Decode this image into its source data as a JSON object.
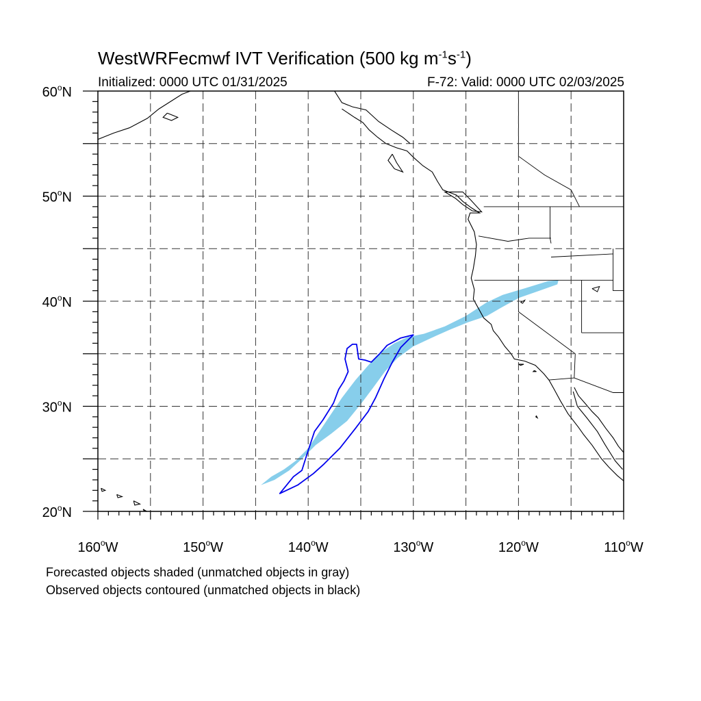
{
  "header": {
    "title_main": "WestWRFecmwf IVT Verification (500 kg m",
    "title_exp1": "-1",
    "title_mid": "s",
    "title_exp2": "-1",
    "title_end": ")",
    "initialized": "Initialized: 0000 UTC 01/31/2025",
    "valid": "F-72: Valid: 0000 UTC 02/03/2025"
  },
  "map": {
    "lon_range": [
      -160,
      -110
    ],
    "lat_range": [
      20,
      60
    ],
    "lon_ticks": [
      {
        "value": -160,
        "num": "160",
        "hem": "W"
      },
      {
        "value": -150,
        "num": "150",
        "hem": "W"
      },
      {
        "value": -140,
        "num": "140",
        "hem": "W"
      },
      {
        "value": -130,
        "num": "130",
        "hem": "W"
      },
      {
        "value": -120,
        "num": "120",
        "hem": "W"
      },
      {
        "value": -110,
        "num": "110",
        "hem": "W"
      }
    ],
    "lat_ticks": [
      {
        "value": 20,
        "num": "20",
        "hem": "N"
      },
      {
        "value": 30,
        "num": "30",
        "hem": "N"
      },
      {
        "value": 40,
        "num": "40",
        "hem": "N"
      },
      {
        "value": 50,
        "num": "50",
        "hem": "N"
      },
      {
        "value": 60,
        "num": "60",
        "hem": "N"
      }
    ],
    "gridlines": "dashed every 5 degrees",
    "colors": {
      "forecast_fill": "#87ceeb",
      "observed_contour": "#0000ee",
      "coastline": "#000000"
    },
    "forecast_object": [
      [
        -144.5,
        22.5
      ],
      [
        -143.5,
        23.3
      ],
      [
        -142.3,
        24.0
      ],
      [
        -141.2,
        24.8
      ],
      [
        -140.0,
        26.0
      ],
      [
        -138.8,
        27.8
      ],
      [
        -137.8,
        29.3
      ],
      [
        -136.8,
        30.8
      ],
      [
        -135.5,
        32.5
      ],
      [
        -134.2,
        34.0
      ],
      [
        -133.0,
        35.2
      ],
      [
        -131.8,
        36.0
      ],
      [
        -130.5,
        36.6
      ],
      [
        -129.0,
        36.9
      ],
      [
        -127.0,
        37.6
      ],
      [
        -125.0,
        38.6
      ],
      [
        -123.0,
        39.9
      ],
      [
        -121.5,
        40.6
      ],
      [
        -119.5,
        41.2
      ],
      [
        -117.2,
        41.9
      ],
      [
        -116.2,
        42.0
      ],
      [
        -116.3,
        41.6
      ],
      [
        -118.0,
        41.0
      ],
      [
        -120.0,
        40.3
      ],
      [
        -121.8,
        39.3
      ],
      [
        -123.0,
        38.6
      ],
      [
        -124.8,
        38.0
      ],
      [
        -126.5,
        37.3
      ],
      [
        -128.3,
        36.5
      ],
      [
        -130.0,
        35.7
      ],
      [
        -131.5,
        34.6
      ],
      [
        -132.7,
        33.3
      ],
      [
        -133.8,
        31.8
      ],
      [
        -135.0,
        30.2
      ],
      [
        -136.3,
        28.6
      ],
      [
        -137.8,
        27.4
      ],
      [
        -139.3,
        26.3
      ],
      [
        -140.6,
        25.0
      ],
      [
        -141.8,
        23.9
      ],
      [
        -143.2,
        23.0
      ],
      [
        -144.5,
        22.5
      ]
    ],
    "observed_object": [
      [
        -142.7,
        21.7
      ],
      [
        -141.0,
        22.5
      ],
      [
        -139.5,
        23.6
      ],
      [
        -138.5,
        24.5
      ],
      [
        -137.0,
        26.0
      ],
      [
        -135.5,
        27.9
      ],
      [
        -134.3,
        29.5
      ],
      [
        -133.6,
        30.8
      ],
      [
        -132.8,
        32.6
      ],
      [
        -132.0,
        34.2
      ],
      [
        -131.2,
        35.6
      ],
      [
        -130.0,
        36.8
      ],
      [
        -131.2,
        36.5
      ],
      [
        -132.5,
        35.8
      ],
      [
        -133.2,
        35.0
      ],
      [
        -134.0,
        34.2
      ],
      [
        -134.6,
        34.4
      ],
      [
        -135.2,
        34.5
      ],
      [
        -135.3,
        35.2
      ],
      [
        -135.4,
        35.9
      ],
      [
        -135.8,
        35.9
      ],
      [
        -136.3,
        35.5
      ],
      [
        -136.5,
        34.5
      ],
      [
        -136.2,
        33.3
      ],
      [
        -136.6,
        32.4
      ],
      [
        -137.1,
        31.6
      ],
      [
        -137.6,
        30.3
      ],
      [
        -138.6,
        28.7
      ],
      [
        -139.4,
        27.6
      ],
      [
        -140.1,
        25.5
      ],
      [
        -140.6,
        23.9
      ],
      [
        -141.4,
        23.3
      ],
      [
        -142.7,
        21.7
      ]
    ],
    "coastline": [
      [
        -136.8,
        58.3
      ],
      [
        -135.6,
        57.5
      ],
      [
        -134.8,
        57.0
      ],
      [
        -134.2,
        56.3
      ],
      [
        -133.4,
        55.6
      ],
      [
        -132.6,
        55.0
      ],
      [
        -131.6,
        54.6
      ],
      [
        -130.6,
        54.3
      ],
      [
        -130.0,
        53.7
      ],
      [
        -129.1,
        52.9
      ],
      [
        -128.2,
        52.3
      ],
      [
        -127.7,
        51.4
      ],
      [
        -127.2,
        50.6
      ],
      [
        -125.9,
        50.1
      ],
      [
        -125.3,
        49.5
      ],
      [
        -124.5,
        48.9
      ],
      [
        -123.7,
        48.4
      ],
      [
        -124.6,
        48.4
      ],
      [
        -124.8,
        47.8
      ],
      [
        -124.2,
        46.6
      ],
      [
        -124.0,
        45.4
      ],
      [
        -124.1,
        44.3
      ],
      [
        -124.3,
        43.1
      ],
      [
        -124.5,
        42.2
      ],
      [
        -124.2,
        41.1
      ],
      [
        -124.3,
        40.2
      ],
      [
        -123.8,
        39.3
      ],
      [
        -123.3,
        38.4
      ],
      [
        -122.6,
        37.8
      ],
      [
        -122.4,
        37.2
      ],
      [
        -121.9,
        36.6
      ],
      [
        -121.3,
        35.7
      ],
      [
        -120.7,
        35.0
      ],
      [
        -120.4,
        34.5
      ],
      [
        -119.4,
        34.3
      ],
      [
        -118.4,
        33.9
      ],
      [
        -117.6,
        33.1
      ],
      [
        -117.1,
        32.5
      ],
      [
        -116.6,
        31.6
      ],
      [
        -116.0,
        30.5
      ],
      [
        -115.3,
        29.3
      ],
      [
        -114.3,
        28.0
      ],
      [
        -113.8,
        27.3
      ],
      [
        -113.0,
        26.3
      ],
      [
        -112.1,
        25.0
      ],
      [
        -111.4,
        24.2
      ],
      [
        -110.6,
        23.4
      ],
      [
        -110.0,
        22.9
      ]
    ],
    "gulf_coast": [
      [
        -114.7,
        31.8
      ],
      [
        -114.3,
        31.0
      ],
      [
        -113.6,
        30.2
      ],
      [
        -113.0,
        29.5
      ],
      [
        -112.4,
        28.9
      ],
      [
        -111.7,
        27.9
      ],
      [
        -111.0,
        27.0
      ],
      [
        -110.5,
        26.2
      ],
      [
        -110.0,
        25.6
      ]
    ],
    "baja_east": [
      [
        -114.8,
        31.4
      ],
      [
        -114.4,
        30.0
      ],
      [
        -113.5,
        28.9
      ],
      [
        -112.5,
        27.6
      ],
      [
        -111.8,
        26.4
      ],
      [
        -110.8,
        24.8
      ],
      [
        -110.1,
        24.0
      ]
    ],
    "alaska_coast": [
      [
        -160.0,
        55.4
      ],
      [
        -158.5,
        56.0
      ],
      [
        -157.0,
        56.5
      ],
      [
        -155.3,
        57.4
      ],
      [
        -154.2,
        58.3
      ],
      [
        -153.1,
        59.0
      ],
      [
        -152.0,
        59.7
      ],
      [
        -151.2,
        60.0
      ]
    ],
    "alaska_coast_east": [
      [
        -148.0,
        60.0
      ],
      [
        -146.2,
        60.0
      ],
      [
        -144.0,
        60.0
      ]
    ],
    "se_alaska_east": [
      [
        -137.5,
        60.0
      ],
      [
        -136.8,
        58.9
      ],
      [
        -135.8,
        58.5
      ],
      [
        -134.5,
        58.2
      ],
      [
        -133.3,
        57.1
      ],
      [
        -132.1,
        56.3
      ],
      [
        -131.0,
        55.6
      ],
      [
        -130.3,
        55.0
      ]
    ],
    "borders": [
      [
        [
          -123.3,
          49.0
        ],
        [
          -110.0,
          49.0
        ]
      ],
      [
        [
          -124.2,
          42.0
        ],
        [
          -111.0,
          42.0
        ]
      ],
      [
        [
          -120.0,
          42.0
        ],
        [
          -120.0,
          39.0
        ],
        [
          -114.6,
          35.0
        ],
        [
          -114.7,
          32.7
        ],
        [
          -111.0,
          31.3
        ],
        [
          -110.0,
          31.3
        ]
      ],
      [
        [
          -117.1,
          32.5
        ],
        [
          -114.7,
          32.7
        ]
      ],
      [
        [
          -117.0,
          49.0
        ],
        [
          -117.0,
          46.0
        ],
        [
          -116.9,
          45.5
        ]
      ],
      [
        [
          -123.8,
          46.2
        ],
        [
          -121.0,
          45.7
        ],
        [
          -119.0,
          46.0
        ],
        [
          -116.9,
          46.0
        ]
      ],
      [
        [
          -116.9,
          44.2
        ],
        [
          -111.0,
          44.5
        ]
      ],
      [
        [
          -114.0,
          42.0
        ],
        [
          -114.0,
          37.0
        ]
      ],
      [
        [
          -114.0,
          37.0
        ],
        [
          -110.0,
          37.0
        ]
      ],
      [
        [
          -111.0,
          45.0
        ],
        [
          -111.0,
          41.0
        ],
        [
          -110.0,
          41.0
        ]
      ],
      [
        [
          -120.0,
          60.0
        ],
        [
          -120.0,
          53.8
        ],
        [
          -117.5,
          52.0
        ],
        [
          -115.0,
          50.6
        ],
        [
          -114.2,
          49.0
        ]
      ]
    ],
    "islands": [
      [
        [
          -125.3,
          50.4
        ],
        [
          -124.6,
          49.7
        ],
        [
          -123.5,
          48.5
        ],
        [
          -124.4,
          48.6
        ],
        [
          -125.3,
          49.2
        ],
        [
          -126.0,
          49.8
        ],
        [
          -127.0,
          50.4
        ],
        [
          -125.3,
          50.4
        ]
      ],
      [
        [
          -132.0,
          54.0
        ],
        [
          -131.6,
          53.2
        ],
        [
          -131.0,
          52.3
        ],
        [
          -131.8,
          52.6
        ],
        [
          -132.4,
          53.4
        ],
        [
          -132.0,
          54.0
        ]
      ],
      [
        [
          -155.7,
          20.2
        ],
        [
          -155.0,
          19.8
        ],
        [
          -155.5,
          19.9
        ],
        [
          -155.7,
          20.2
        ]
      ],
      [
        [
          -156.6,
          21.0
        ],
        [
          -156.0,
          20.7
        ],
        [
          -156.5,
          20.6
        ],
        [
          -156.6,
          21.0
        ]
      ],
      [
        [
          -158.2,
          21.6
        ],
        [
          -157.7,
          21.4
        ],
        [
          -158.1,
          21.3
        ],
        [
          -158.2,
          21.6
        ]
      ],
      [
        [
          -159.7,
          22.2
        ],
        [
          -159.3,
          22.0
        ],
        [
          -159.6,
          21.9
        ],
        [
          -159.7,
          22.2
        ]
      ],
      [
        [
          -153.4,
          57.9
        ],
        [
          -152.4,
          57.5
        ],
        [
          -153.0,
          57.2
        ],
        [
          -153.8,
          57.5
        ],
        [
          -153.4,
          57.9
        ]
      ],
      [
        [
          -118.5,
          33.4
        ],
        [
          -118.3,
          33.3
        ],
        [
          -118.6,
          33.3
        ],
        [
          -118.5,
          33.4
        ]
      ],
      [
        [
          -120.0,
          34.0
        ],
        [
          -119.5,
          34.0
        ],
        [
          -119.8,
          33.9
        ],
        [
          -120.0,
          34.0
        ]
      ],
      [
        [
          -118.3,
          29.1
        ],
        [
          -118.2,
          28.9
        ],
        [
          -118.35,
          29.0
        ],
        [
          -118.3,
          29.1
        ]
      ]
    ],
    "lakes": [
      [
        [
          -113.0,
          41.2
        ],
        [
          -112.3,
          41.4
        ],
        [
          -112.5,
          40.9
        ],
        [
          -113.0,
          41.2
        ]
      ],
      [
        [
          -119.8,
          39.9
        ],
        [
          -119.4,
          40.1
        ],
        [
          -119.6,
          39.8
        ],
        [
          -119.8,
          39.9
        ]
      ]
    ]
  },
  "captions": {
    "line1": "Forecasted objects shaded (unmatched objects in gray)",
    "line2": "Observed objects contoured (unmatched objects in black)"
  }
}
